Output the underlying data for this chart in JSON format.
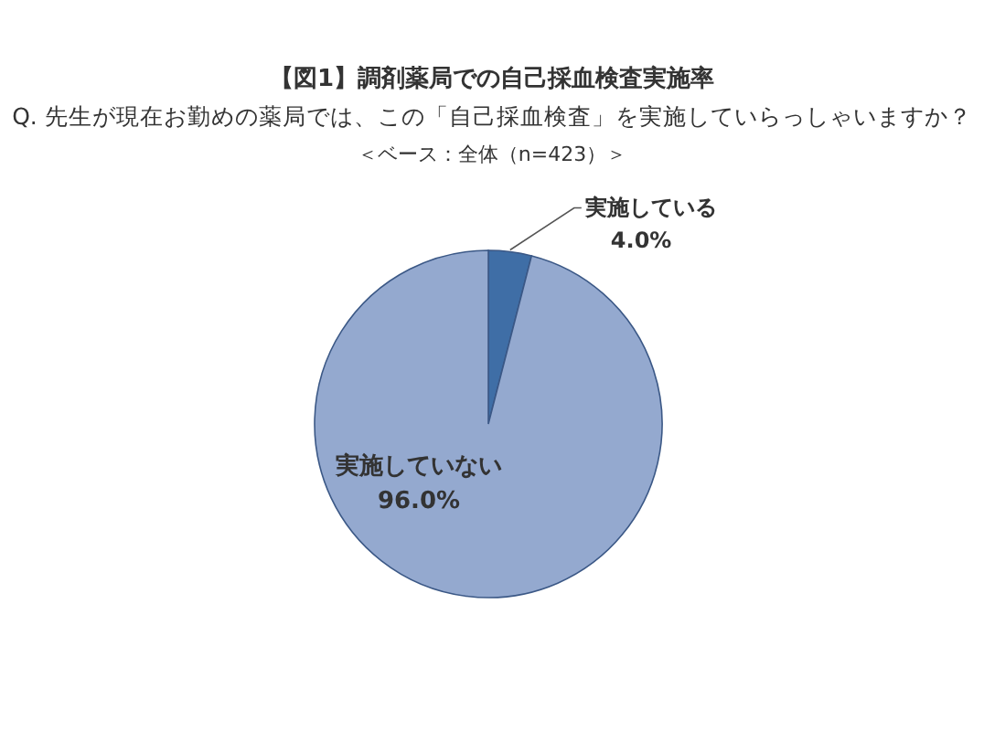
{
  "chart_data": {
    "type": "pie",
    "title": "【図1】調剤薬局での自己採血検査実施率",
    "subtitle": "Q. 先生が現在お勤めの薬局では、この「自己採血検査」を実施していらっしゃいますか？",
    "annotations": [
      "＜ベース：全体（n=423）＞"
    ],
    "categories": [
      "実施している",
      "実施していない"
    ],
    "values": [
      4.0,
      96.0
    ],
    "value_labels": [
      "4.0%",
      "96.0%"
    ],
    "colors": [
      "#3f6ea6",
      "#94a9cf"
    ]
  }
}
